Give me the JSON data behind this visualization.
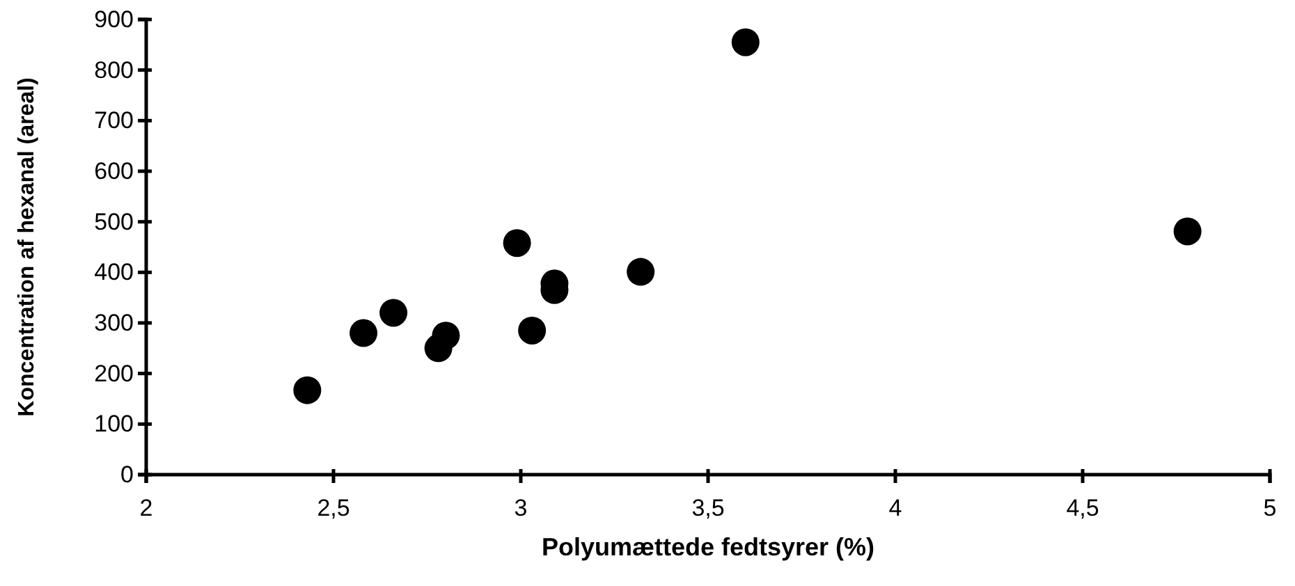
{
  "chart_data": {
    "type": "scatter",
    "xlabel": "Polyumættede fedtsyrer (%)",
    "ylabel": "Koncentration af hexanal (areal)",
    "x": [
      2.43,
      2.58,
      2.66,
      2.78,
      2.8,
      2.99,
      3.03,
      3.09,
      3.09,
      3.32,
      3.6,
      4.78
    ],
    "values": [
      167,
      280,
      320,
      250,
      275,
      458,
      285,
      378,
      365,
      401,
      855,
      481
    ],
    "color": "#000000",
    "marker": "circle",
    "grid": false,
    "legend": false,
    "xlim": [
      2,
      5
    ],
    "xticks": [
      2,
      {
        "value": 2.5,
        "label": "2,5"
      },
      3,
      {
        "value": 3.5,
        "label": "3,5"
      },
      4,
      {
        "value": 4.5,
        "label": "4,5"
      },
      5
    ],
    "ylim": [
      0,
      900
    ],
    "yticks": [
      0,
      100,
      200,
      300,
      400,
      500,
      600,
      700,
      800,
      900
    ]
  }
}
